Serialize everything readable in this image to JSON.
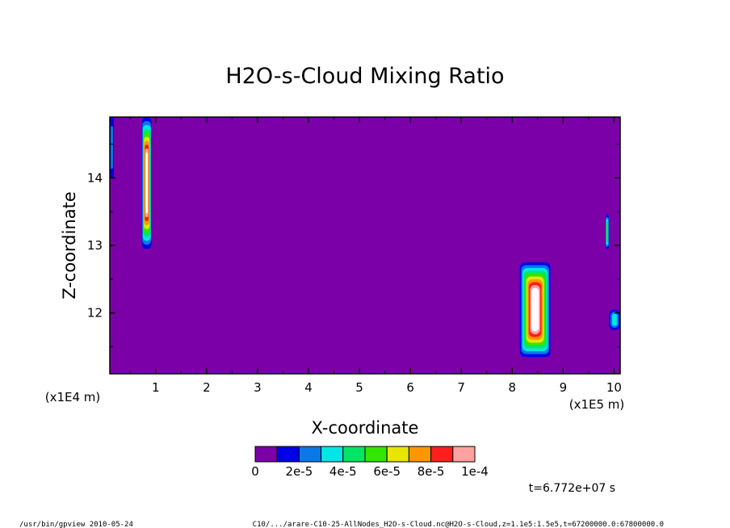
{
  "chart_data": {
    "type": "heatmap",
    "title": "H2O-s-Cloud Mixing Ratio",
    "xlabel": "X-coordinate",
    "ylabel": "Z-coordinate",
    "x_unit": "(x1E5 m)",
    "y_unit": "(x1E4 m)",
    "xlim": [
      0.1,
      10.12
    ],
    "ylim": [
      11.1,
      14.9
    ],
    "x_ticks": [
      "1",
      "2",
      "3",
      "4",
      "5",
      "6",
      "7",
      "8",
      "9",
      "10"
    ],
    "y_ticks": [
      "12",
      "13",
      "14"
    ],
    "background_level": 0,
    "colorbar": {
      "levels": [
        0,
        1e-05,
        2e-05,
        3e-05,
        4e-05,
        5e-05,
        6e-05,
        7e-05,
        8e-05,
        9e-05,
        0.0001
      ],
      "colors": [
        "#7b00a8",
        "#0000e6",
        "#0a78e6",
        "#00e6e6",
        "#00e664",
        "#32e600",
        "#e6e600",
        "#ff9600",
        "#ff1e1e",
        "#ffa0a0"
      ],
      "labels": [
        "0",
        "2e-5",
        "4e-5",
        "6e-5",
        "8e-5",
        "1e-4"
      ]
    },
    "features": [
      {
        "x": [
          0.73,
          0.92
        ],
        "z": [
          12.95,
          14.9
        ],
        "peak": 0.0001
      },
      {
        "x": [
          0.1,
          0.18
        ],
        "z": [
          14.0,
          14.9
        ],
        "peak": 2e-05
      },
      {
        "x": [
          8.15,
          8.75
        ],
        "z": [
          11.35,
          12.75
        ],
        "peak": 0.0001
      },
      {
        "x": [
          9.83,
          9.9
        ],
        "z": [
          12.95,
          13.45
        ],
        "peak": 5e-05
      },
      {
        "x": [
          9.9,
          10.12
        ],
        "z": [
          11.75,
          12.05
        ],
        "peak": 3e-05
      }
    ]
  },
  "time_label": "t=6.772e+07 s",
  "footer": {
    "left": "/usr/bin/gpview  2010-05-24",
    "right": "C10/.../arare-C10-25-AllNodes_H2O-s-Cloud.nc@H2O-s-Cloud,z=1.1e5:1.5e5,t=67200000.0:67800000.0"
  }
}
